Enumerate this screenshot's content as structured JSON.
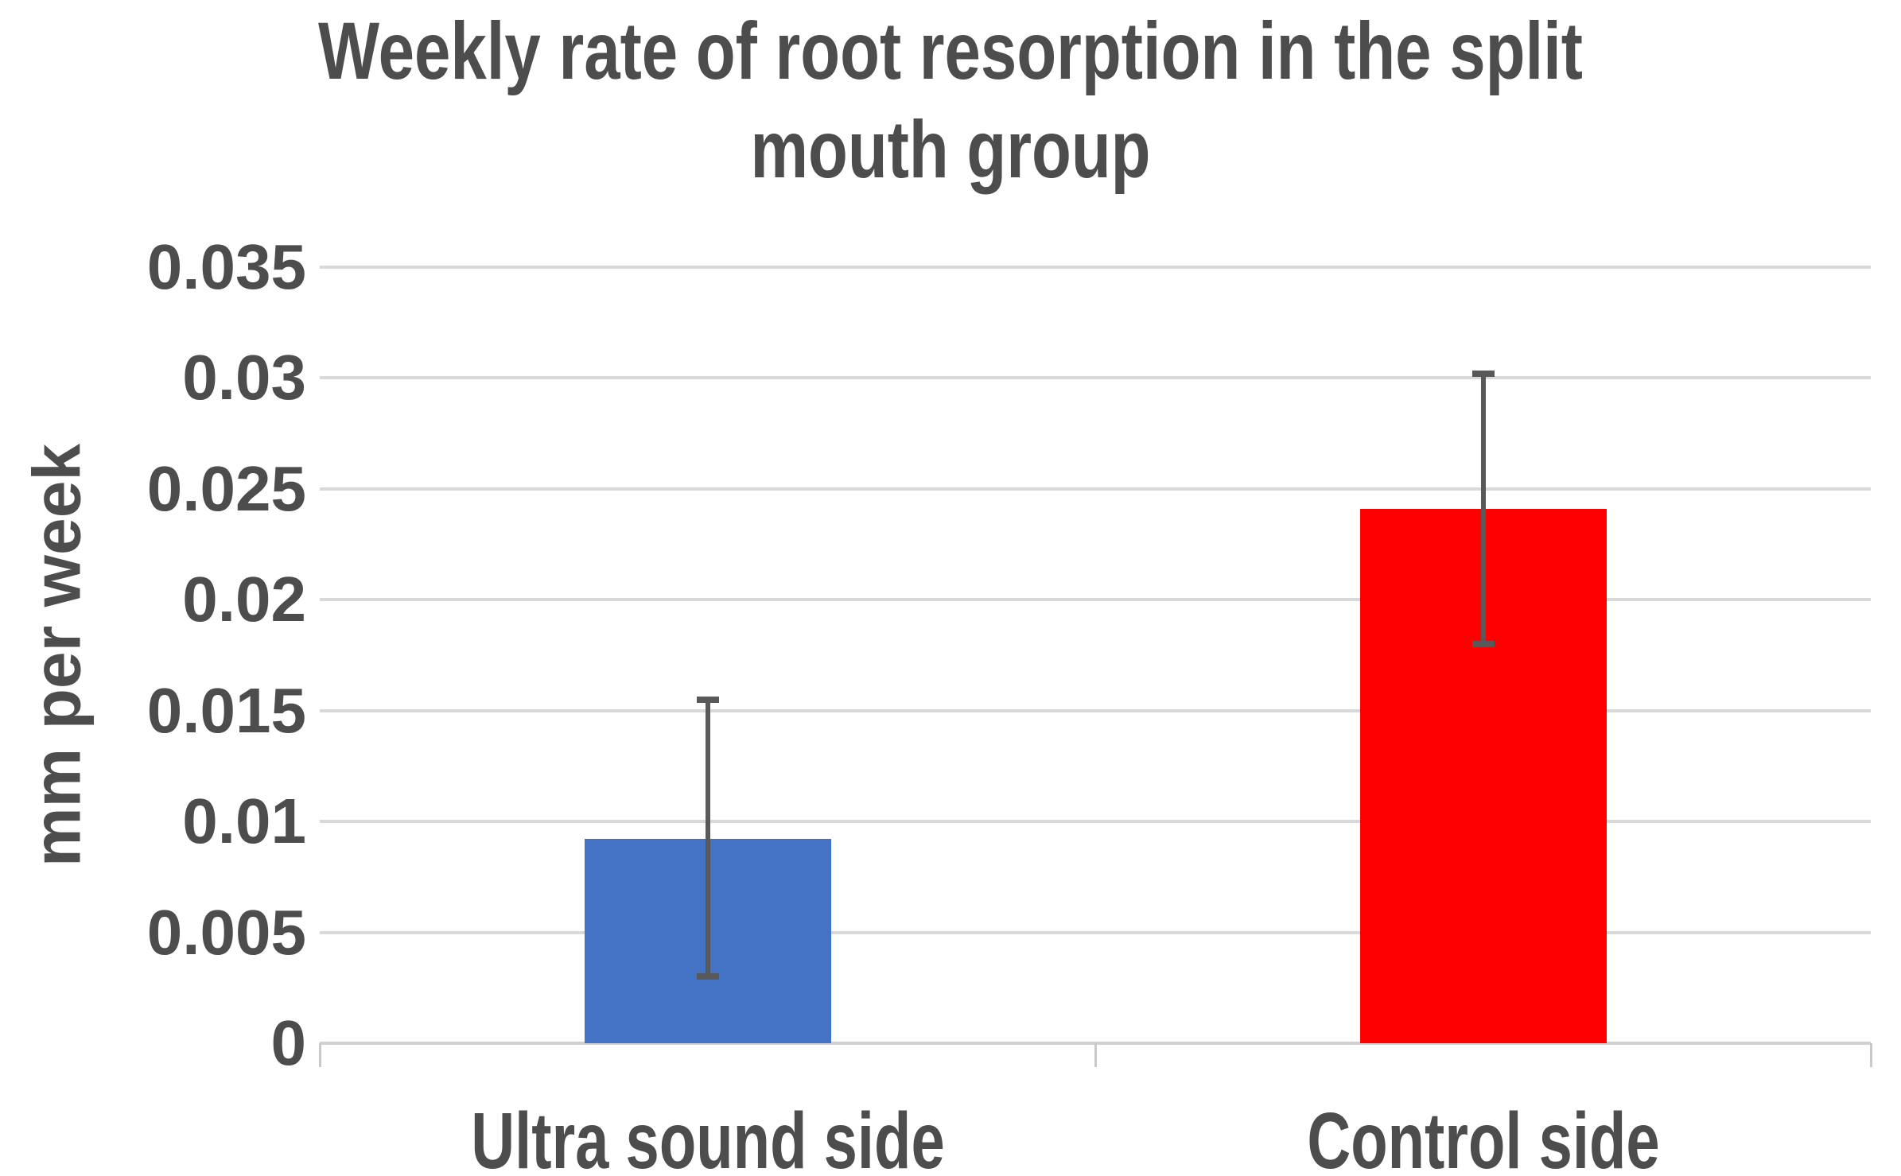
{
  "title": {
    "lines": [
      "Weekly rate of root resorption in the split",
      "mouth group"
    ]
  },
  "chart_data": {
    "type": "bar",
    "title": "Weekly rate of root resorption in the split mouth group",
    "categories": [
      "Ultra sound side",
      "Control side"
    ],
    "series": [
      {
        "name": "Weekly rate of root resorption",
        "values": [
          0.0092,
          0.0241
        ],
        "error_bar_top": [
          0.0155,
          0.0302
        ],
        "error_bar_bottom": [
          0.003,
          0.018
        ],
        "bar_colors": [
          "#4472C4",
          "#FF0000"
        ]
      }
    ],
    "xlabel": "",
    "ylabel": "mm per week",
    "ylim": [
      0,
      0.035
    ],
    "ytick_values": [
      0,
      0.005,
      0.01,
      0.015,
      0.02,
      0.025,
      0.03,
      0.035
    ],
    "ytick_labels": [
      "0",
      "0.005",
      "0.01",
      "0.015",
      "0.02",
      "0.025",
      "0.03",
      "0.035"
    ],
    "grid": "horizontal",
    "legend": "none"
  },
  "colors": {
    "text": "#4D4D4D",
    "gridline": "#D9D9D9",
    "baseline": "#D0D0D0",
    "tick_mark": "#C9C9C9",
    "error_bar": "#595959",
    "background": "#FFFFFF"
  }
}
